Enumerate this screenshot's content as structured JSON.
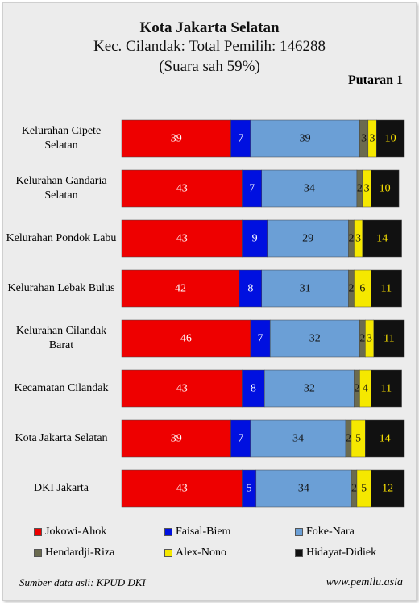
{
  "chart_data": {
    "type": "stacked-bar-horizontal",
    "title": "Kota Jakarta Selatan",
    "subtitle": "Kec. Cilandak: Total Pemilih: 146288",
    "note": "(Suara sah 59%)",
    "round": "Putaran 1",
    "categories": [
      "Kelurahan Cipete Selatan",
      "Kelurahan Gandaria Selatan",
      "Kelurahan Pondok Labu",
      "Kelurahan Lebak Bulus",
      "Kelurahan Cilandak Barat",
      "Kecamatan Cilandak",
      "Kota Jakarta Selatan",
      "DKI Jakarta"
    ],
    "series": [
      {
        "name": "Jokowi-Ahok",
        "color": "#ee0000",
        "label_color": "#ffffff",
        "values": [
          39,
          43,
          43,
          42,
          46,
          43,
          39,
          43
        ]
      },
      {
        "name": "Faisal-Biem",
        "color": "#0010e0",
        "label_color": "#ffffff",
        "values": [
          7,
          7,
          9,
          8,
          7,
          8,
          7,
          5
        ]
      },
      {
        "name": "Foke-Nara",
        "color": "#6b9fd6",
        "label_color": "#111111",
        "values": [
          39,
          34,
          29,
          31,
          32,
          32,
          34,
          34
        ]
      },
      {
        "name": "Hendardji-Riza",
        "color": "#6b6b4f",
        "label_color": "#111111",
        "values": [
          3,
          2,
          2,
          2,
          2,
          2,
          2,
          2
        ]
      },
      {
        "name": "Alex-Nono",
        "color": "#f5e800",
        "label_color": "#111111",
        "values": [
          3,
          3,
          3,
          6,
          3,
          4,
          5,
          5
        ]
      },
      {
        "name": "Hidayat-Didiek",
        "color": "#111111",
        "label_color": "#ffe600",
        "values": [
          10,
          10,
          14,
          11,
          11,
          11,
          14,
          12
        ]
      }
    ],
    "source": "Sumber data asli: KPUD DKI",
    "site": "www.pemilu.asia"
  }
}
